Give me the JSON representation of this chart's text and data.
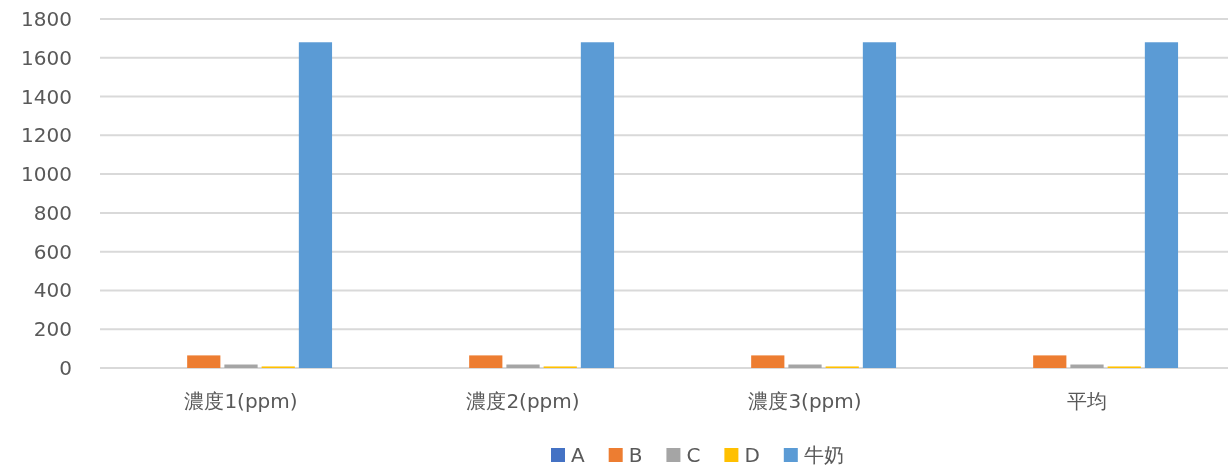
{
  "chart_data": {
    "type": "bar",
    "categories": [
      "濃度1(ppm)",
      "濃度2(ppm)",
      "濃度3(ppm)",
      "平均"
    ],
    "series": [
      {
        "name": "A",
        "color": "#4472c4",
        "values": [
          null,
          null,
          null,
          null
        ]
      },
      {
        "name": "B",
        "color": "#ed7d31",
        "values": [
          65,
          65,
          65,
          65
        ]
      },
      {
        "name": "C",
        "color": "#a5a5a5",
        "values": [
          18,
          18,
          18,
          18
        ]
      },
      {
        "name": "D",
        "color": "#ffc000",
        "values": [
          8,
          8,
          8,
          8
        ]
      },
      {
        "name": "牛奶",
        "color": "#5b9bd5",
        "values": [
          1680,
          1680,
          1680,
          1680
        ]
      }
    ],
    "ylim": [
      0,
      1800
    ],
    "yticks": [
      0,
      200,
      400,
      600,
      800,
      1000,
      1200,
      1400,
      1600,
      1800
    ],
    "grid": "y",
    "legend": "bottom"
  }
}
